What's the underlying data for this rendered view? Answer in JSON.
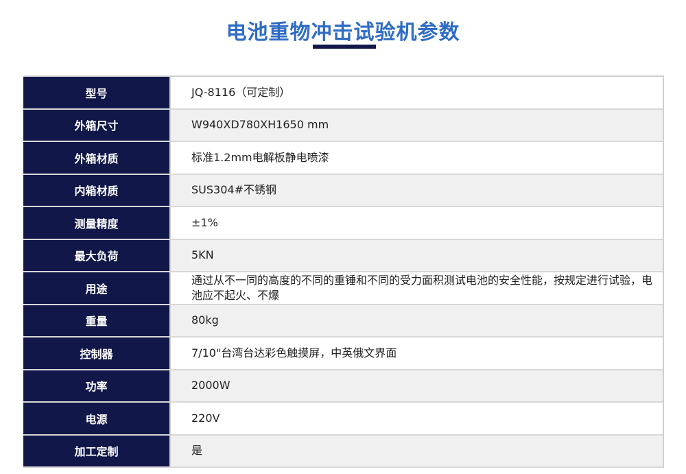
{
  "title": "电池重物冲击试验机参数",
  "rows": [
    {
      "label": "型号",
      "value": "JQ-8116（可定制）"
    },
    {
      "label": "外箱尺寸",
      "value": "W940XD780XH1650 mm"
    },
    {
      "label": "外箱材质",
      "value": "标准1.2mm电解板静电喷漆"
    },
    {
      "label": "内箱材质",
      "value": "SUS304#不锈钢"
    },
    {
      "label": "测量精度",
      "value": "±1%"
    },
    {
      "label": "最大负荷",
      "value": "5KN"
    },
    {
      "label": "用途",
      "value": "通过从不一同的高度的不同的重锤和不同的受力面积测试电池的安全性能，按规定进行试验，电池应不起火、不爆"
    },
    {
      "label": "重量",
      "value": "80kg"
    },
    {
      "label": "控制器",
      "value": "7/10\"台湾台达彩色触摸屏，中英俄文界面"
    },
    {
      "label": "功率",
      "value": "2000W"
    },
    {
      "label": "电源",
      "value": "220V"
    },
    {
      "label": "加工定制",
      "value": "是"
    }
  ]
}
